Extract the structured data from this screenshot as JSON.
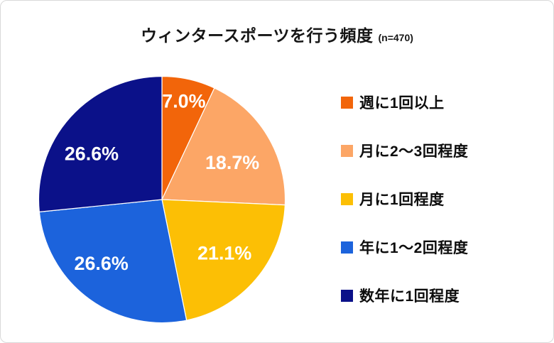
{
  "header": {
    "title": "ウィンタースポーツを行う頻度",
    "sample_size": "(n=470)"
  },
  "chart_data": {
    "type": "pie",
    "title": "ウィンタースポーツを行う頻度",
    "sample_size": "(n=470)",
    "categories": [
      "週に1回以上",
      "月に2～3回程度",
      "月に1回程度",
      "年に1～2回程度",
      "数年に1回程度"
    ],
    "values": [
      7.0,
      18.7,
      21.1,
      26.6,
      26.6
    ],
    "data_labels": [
      "7.0%",
      "18.7%",
      "21.1%",
      "26.6%",
      "26.6%"
    ],
    "colors": [
      "#F2650A",
      "#FCA666",
      "#FCBF05",
      "#1C63DC",
      "#0B1189"
    ],
    "start_angle_deg": 0,
    "direction": "clockwise",
    "legend_position": "right",
    "data_label_color": "#FFFFFF",
    "slice_border_color": "#FFFFFF",
    "data_label_pos": [
      [
        0.178,
        -0.797
      ],
      [
        0.571,
        -0.299
      ],
      [
        0.508,
        0.435
      ],
      [
        -0.492,
        0.52
      ],
      [
        -0.571,
        -0.373
      ]
    ]
  }
}
